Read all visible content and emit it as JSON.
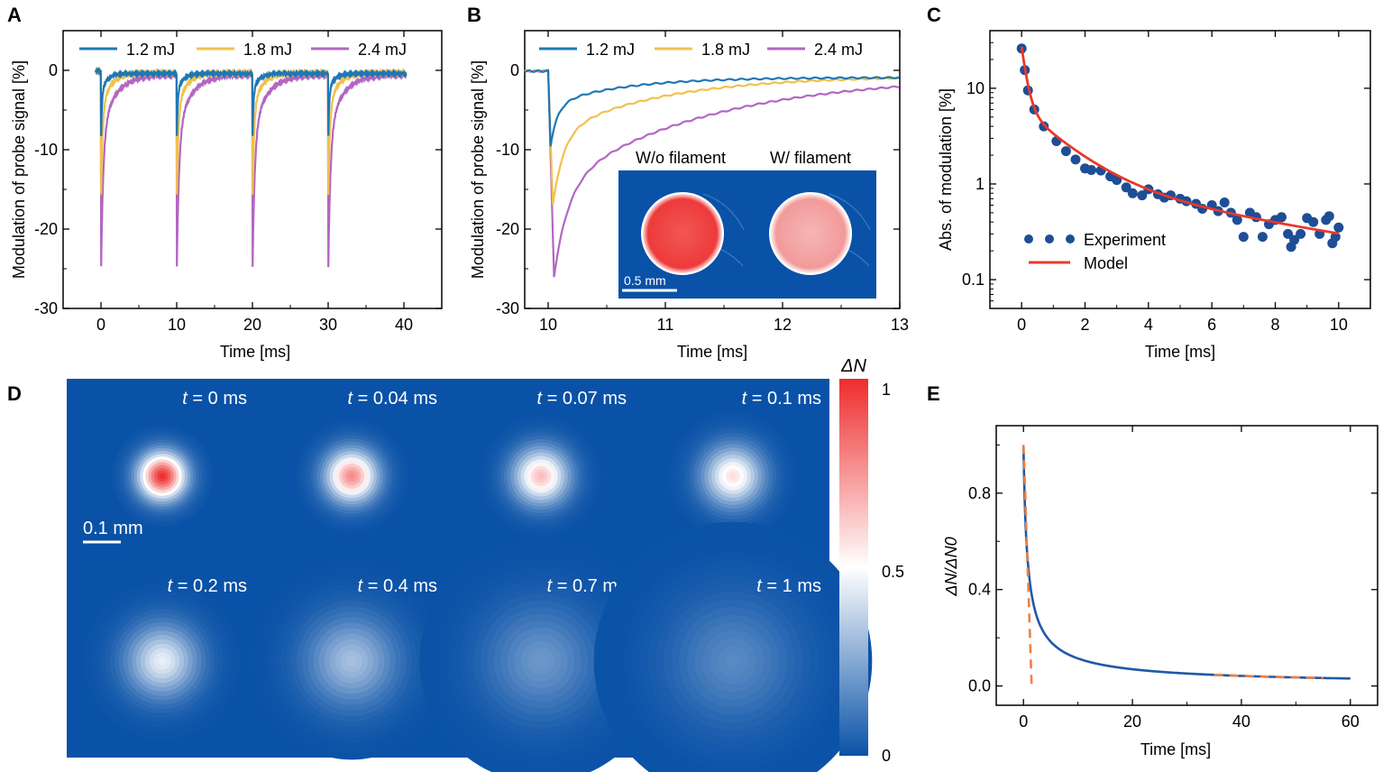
{
  "colors": {
    "blue": "#1f77b4",
    "yellow": "#f0c14b",
    "purple": "#b366c2",
    "model_red": "#e8392c",
    "exp_blue": "#1d4e96",
    "field_blue": "#0a52a7",
    "tail_orange": "#f07f41"
  },
  "chart_data": [
    {
      "panel": "A",
      "type": "line",
      "xlabel": "Time [ms]",
      "ylabel": "Modulation of probe signal [%]",
      "xlim": [
        -5,
        45
      ],
      "ylim": [
        -30,
        5
      ],
      "xticks": [
        "0",
        "10",
        "20",
        "30",
        "40"
      ],
      "yticks": [
        "0",
        "-10",
        "-20",
        "-30"
      ],
      "pulse_times_ms": [
        0,
        10,
        20,
        30
      ],
      "legend": [
        "1.2 mJ",
        "1.8 mJ",
        "2.4 mJ"
      ],
      "series": [
        {
          "name": "1.2 mJ",
          "peak": -9.5,
          "tau_ms": 0.12,
          "tail": -0.4
        },
        {
          "name": "1.8 mJ",
          "peak": -17,
          "tau_ms": 0.2,
          "tail": -0.3
        },
        {
          "name": "2.4 mJ",
          "peak": -26,
          "tau_ms": 0.3,
          "tail": -0.6
        }
      ]
    },
    {
      "panel": "B",
      "type": "line",
      "xlabel": "Time [ms]",
      "ylabel": "Modulation of probe signal [%]",
      "xlim": [
        9.8,
        13
      ],
      "ylim": [
        -30,
        5
      ],
      "xticks": [
        "10",
        "11",
        "12",
        "13"
      ],
      "yticks": [
        "0",
        "-10",
        "-20",
        "-30"
      ],
      "legend": [
        "1.2 mJ",
        "1.8 mJ",
        "2.4 mJ"
      ],
      "series": [
        {
          "name": "1.2 mJ",
          "peak": -9.5,
          "peak_time_ms": 10.02
        },
        {
          "name": "1.8 mJ",
          "peak": -17,
          "peak_time_ms": 10.04
        },
        {
          "name": "2.4 mJ",
          "peak": -26,
          "peak_time_ms": 10.05
        }
      ],
      "inset": {
        "left_title": "W/o filament",
        "right_title": "W/ filament",
        "scale_bar": "0.5 mm"
      }
    },
    {
      "panel": "C",
      "type": "scatter",
      "xlabel": "Time [ms]",
      "ylabel": "Abs. of modulation [%]",
      "xlim": [
        -1,
        11
      ],
      "ylim_log": [
        0.05,
        40
      ],
      "xticks": [
        "0",
        "2",
        "4",
        "6",
        "8",
        "10"
      ],
      "yticks": [
        "0.1",
        "1",
        "10"
      ],
      "legend": [
        "Experiment",
        "Model"
      ],
      "experiment": {
        "x": [
          0,
          0.1,
          0.2,
          0.4,
          0.7,
          1.1,
          1.4,
          1.7,
          2.0,
          2.2,
          2.5,
          2.8,
          3.0,
          3.3,
          3.5,
          3.8,
          4.0,
          4.3,
          4.5,
          4.7,
          5.0,
          5.2,
          5.5,
          5.7,
          6.0,
          6.2,
          6.4,
          6.6,
          6.8,
          7.0,
          7.2,
          7.4,
          7.6,
          7.8,
          8.0,
          8.2,
          8.4,
          8.5,
          8.6,
          8.8,
          9.0,
          9.2,
          9.4,
          9.6,
          9.7,
          9.8,
          9.9,
          10.0
        ],
        "y": [
          26,
          15.5,
          9.5,
          6.0,
          4.0,
          2.8,
          2.2,
          1.8,
          1.45,
          1.4,
          1.38,
          1.2,
          1.1,
          0.92,
          0.8,
          0.76,
          0.88,
          0.78,
          0.72,
          0.76,
          0.7,
          0.66,
          0.62,
          0.55,
          0.6,
          0.52,
          0.64,
          0.5,
          0.42,
          0.28,
          0.5,
          0.45,
          0.28,
          0.38,
          0.42,
          0.45,
          0.3,
          0.22,
          0.26,
          0.3,
          0.44,
          0.4,
          0.3,
          0.42,
          0.46,
          0.24,
          0.28,
          0.35
        ]
      },
      "model": {
        "a1": 20.8,
        "tau1_ms": 0.15,
        "a2": 5.2,
        "tau2_ms": 1.3,
        "a3": 1.05,
        "tau3_ms": 8.0
      }
    },
    {
      "panel": "D",
      "type": "heatmap",
      "colorbar_label": "ΔN",
      "colorbar_ticks": [
        "1",
        "0.5",
        "0"
      ],
      "scale_bar": "0.1 mm",
      "time_unit": "ms",
      "frames": [
        {
          "t": "0",
          "peak": 1.0,
          "width": 1.0
        },
        {
          "t": "0.04",
          "peak": 0.78,
          "width": 1.12
        },
        {
          "t": "0.07",
          "peak": 0.66,
          "width": 1.2
        },
        {
          "t": "0.1",
          "peak": 0.58,
          "width": 1.28
        },
        {
          "t": "0.2",
          "peak": 0.46,
          "width": 1.55
        },
        {
          "t": "0.4",
          "peak": 0.32,
          "width": 1.95
        },
        {
          "t": "0.7",
          "peak": 0.2,
          "width": 2.4
        },
        {
          "t": "1",
          "peak": 0.16,
          "width": 2.75
        }
      ]
    },
    {
      "panel": "E",
      "type": "line",
      "xlabel": "Time [ms]",
      "ylabel": "ΔN/ΔN0",
      "xlim": [
        -5,
        65
      ],
      "ylim": [
        -0.08,
        1.08
      ],
      "xticks": [
        "0",
        "20",
        "40",
        "60"
      ],
      "yticks": [
        "0.0",
        "0.4",
        "0.8"
      ],
      "solid_curve": {
        "x_start": 0,
        "x_end": 60,
        "y0": 1.0,
        "shape": "1/(1+t/0.65)^0.75"
      },
      "dashed_fast": {
        "x": [
          0,
          0.3,
          0.6,
          0.9,
          1.2,
          1.5
        ],
        "y": [
          1.0,
          0.82,
          0.6,
          0.4,
          0.2,
          0.0
        ]
      },
      "dashed_tail": {
        "x_start": 35,
        "x_end": 55
      }
    }
  ]
}
